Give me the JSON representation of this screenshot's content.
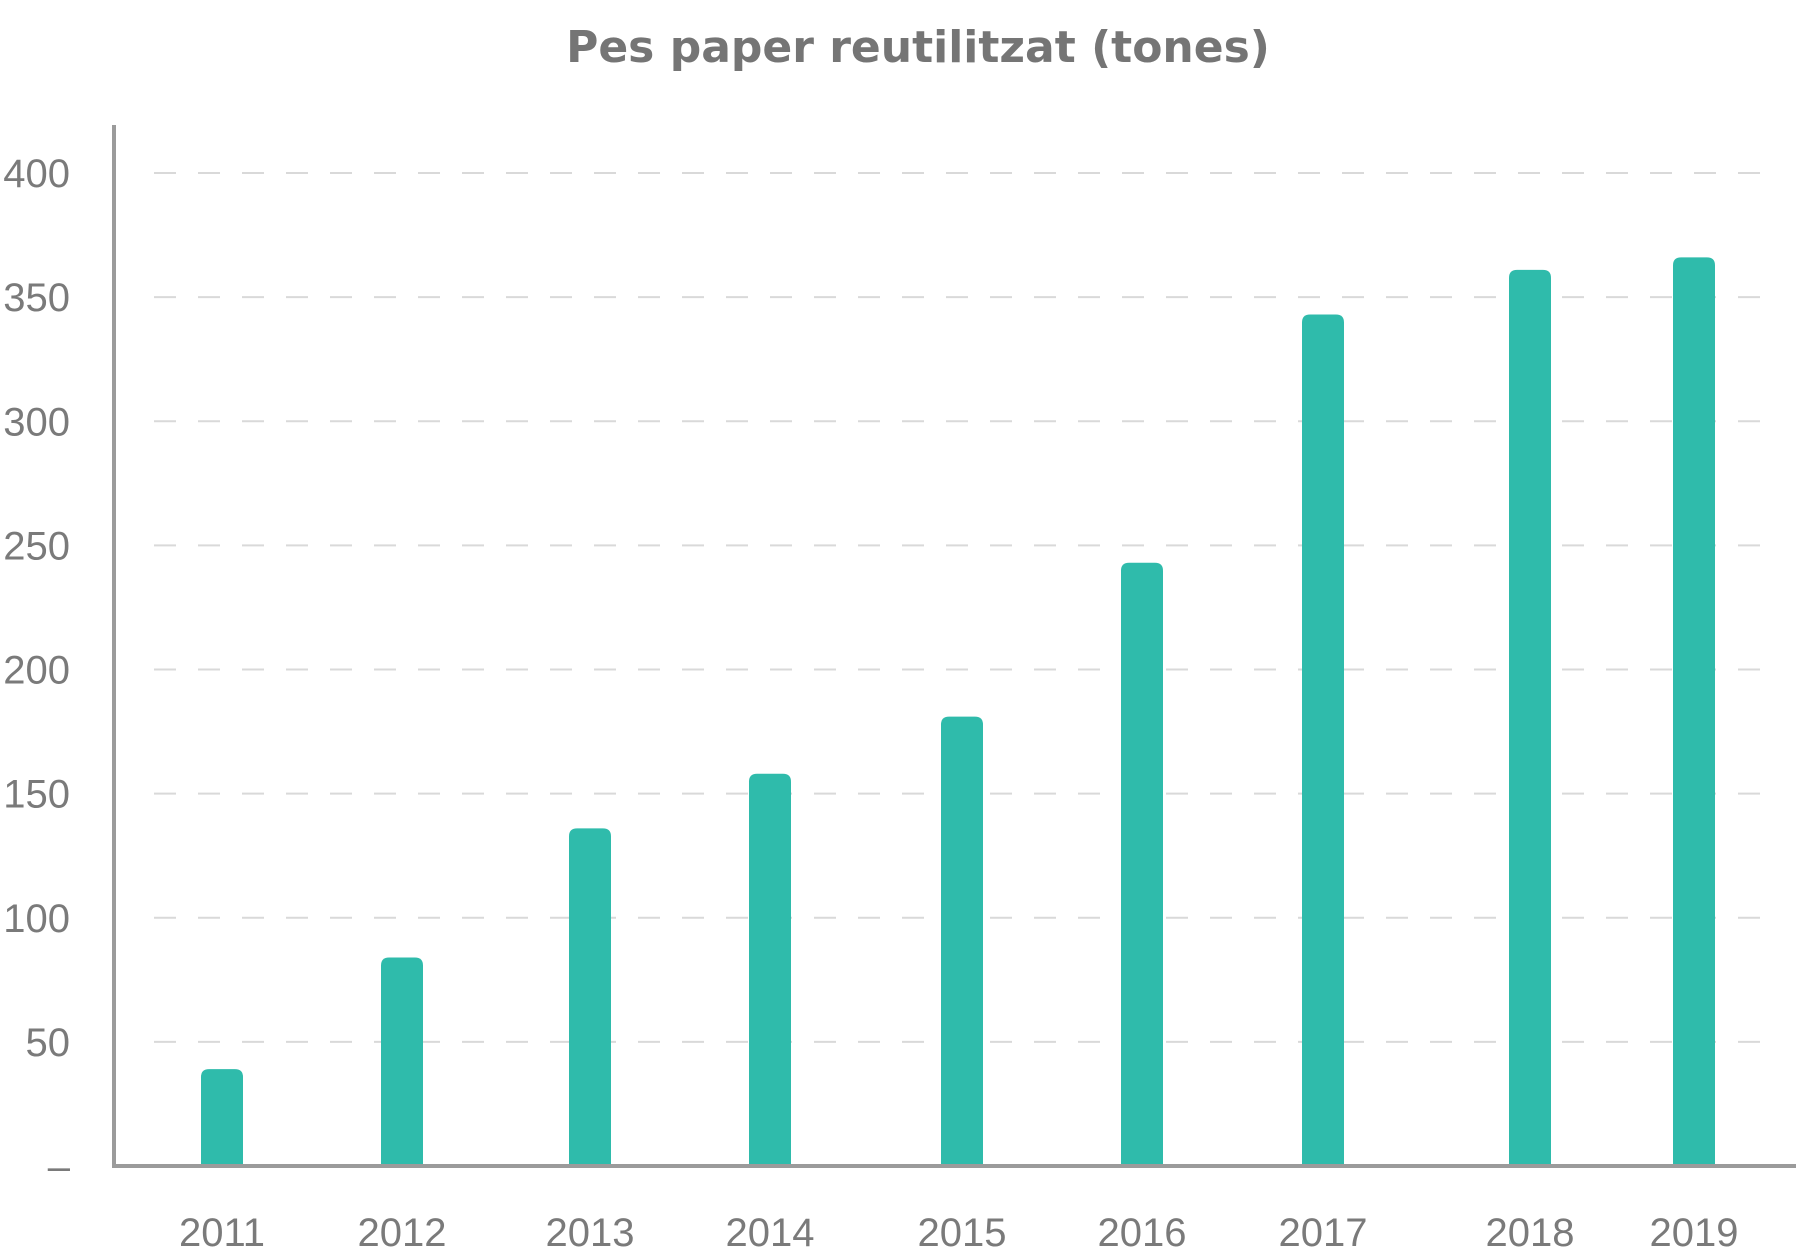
{
  "chart_data": {
    "type": "bar",
    "title": "Pes paper reutilitzat (tones)",
    "xlabel": "",
    "ylabel": "",
    "categories": [
      "2011",
      "2012",
      "2013",
      "2014",
      "2015",
      "2016",
      "2017",
      "2018",
      "2019"
    ],
    "values": [
      39,
      84,
      136,
      158,
      181,
      243,
      343,
      361,
      366
    ],
    "ylim": [
      0,
      400
    ],
    "y_ticks": [
      0,
      50,
      100,
      150,
      200,
      250,
      300,
      350,
      400
    ],
    "y_tick_labels": [
      "–",
      "50",
      "100",
      "150",
      "200",
      "250",
      "300",
      "350",
      "400"
    ],
    "grid": true,
    "legend": "none",
    "bar_color": "#2fbbab"
  }
}
